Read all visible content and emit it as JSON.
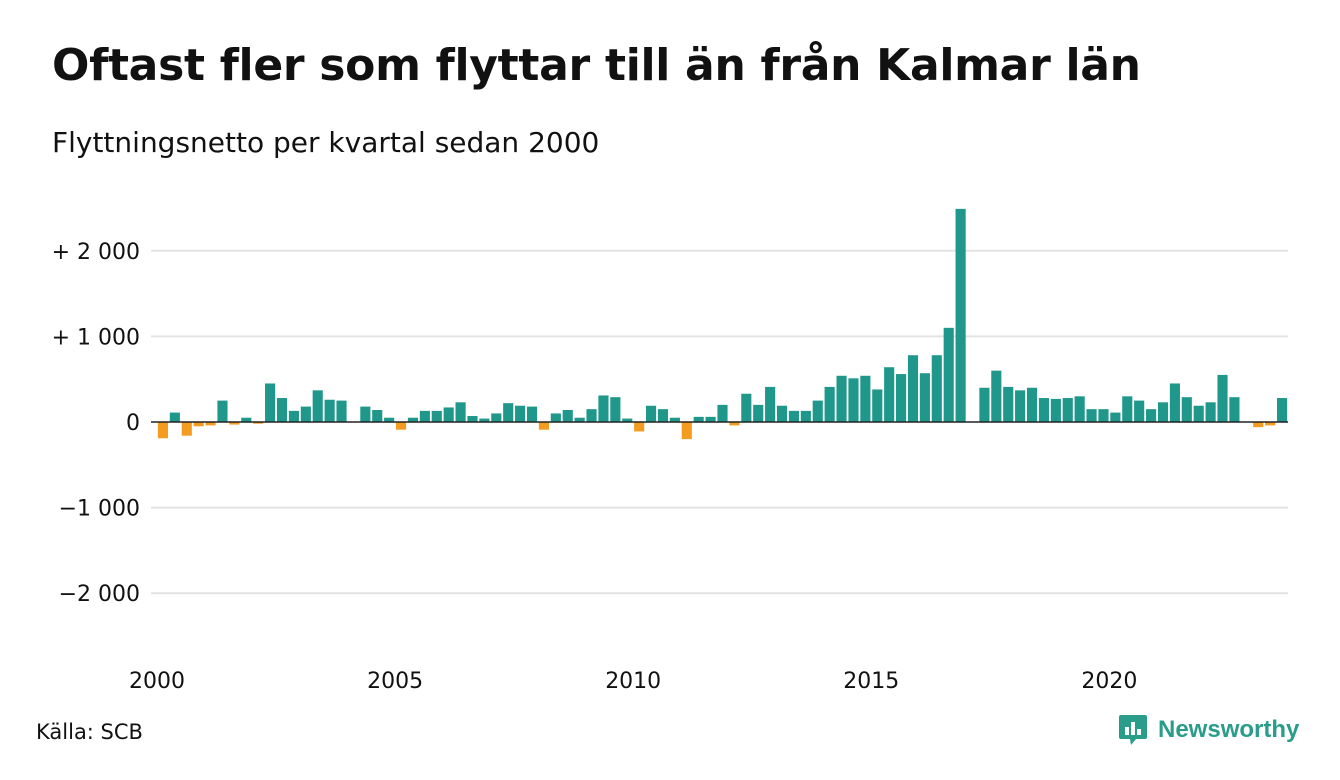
{
  "header": {
    "title": "Oftast fler som flyttar till än från Kalmar län",
    "subtitle": "Flyttningsnetto per kvartal sedan 2000"
  },
  "footer": {
    "source": "Källa: SCB",
    "brand": "Newsworthy",
    "brand_icon": "chart-speech-bubble-icon"
  },
  "colors": {
    "positive": "#1f978a",
    "negative": "#f39c1f",
    "grid": "#e3e3e3",
    "zero_line": "#222222",
    "brand": "#2a9d8a"
  },
  "chart_data": {
    "type": "bar",
    "title": "Oftast fler som flyttar till än från Kalmar län",
    "subtitle": "Flyttningsnetto per kvartal sedan 2000",
    "xlabel": "",
    "ylabel": "",
    "ylim": [
      -2500,
      2500
    ],
    "grid": true,
    "y_ticks": [
      {
        "value": 2000,
        "label": "+ 2 000"
      },
      {
        "value": 1000,
        "label": "+ 1 000"
      },
      {
        "value": 0,
        "label": "0"
      },
      {
        "value": -1000,
        "label": "−1 000"
      },
      {
        "value": -2000,
        "label": "−2 000"
      }
    ],
    "x_ticks": [
      "2000",
      "2005",
      "2010",
      "2015",
      "2020"
    ],
    "start_year": 2000,
    "quarters_per_year": 4,
    "values": [
      -190,
      110,
      -160,
      -50,
      -40,
      250,
      -30,
      50,
      -20,
      450,
      280,
      130,
      180,
      370,
      260,
      250,
      0,
      180,
      140,
      50,
      -90,
      50,
      130,
      130,
      170,
      230,
      70,
      40,
      100,
      220,
      190,
      180,
      -90,
      100,
      140,
      50,
      150,
      310,
      290,
      40,
      -110,
      190,
      150,
      50,
      -200,
      60,
      60,
      200,
      -40,
      330,
      200,
      410,
      190,
      130,
      130,
      250,
      410,
      540,
      510,
      540,
      380,
      640,
      560,
      780,
      570,
      780,
      1100,
      2490,
      0,
      400,
      600,
      410,
      370,
      400,
      280,
      270,
      280,
      300,
      150,
      150,
      110,
      300,
      250,
      150,
      230,
      450,
      290,
      190,
      230,
      550,
      290,
      0,
      -60,
      -40,
      280
    ]
  }
}
